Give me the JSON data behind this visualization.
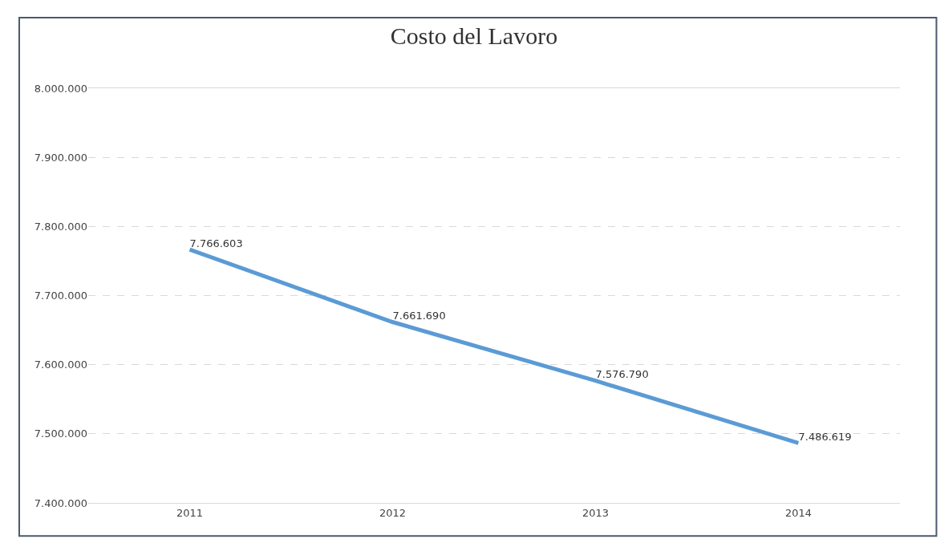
{
  "chart_data": {
    "type": "line",
    "title": "Costo del Lavoro",
    "categories": [
      "2011",
      "2012",
      "2013",
      "2014"
    ],
    "values": [
      7766603,
      7661690,
      7576790,
      7486619
    ],
    "value_labels": [
      "7.766.603",
      "7.661.690",
      "7.576.790",
      "7.486.619"
    ],
    "color": "#5b9bd5",
    "ylim": [
      7400000,
      8000000
    ],
    "yticks": [
      {
        "value": 7400000,
        "label": "7.400.000"
      },
      {
        "value": 7500000,
        "label": "7.500.000"
      },
      {
        "value": 7600000,
        "label": "7.600.000"
      },
      {
        "value": 7700000,
        "label": "7.700.000"
      },
      {
        "value": 7800000,
        "label": "7.800.000"
      },
      {
        "value": 7900000,
        "label": "7.900.000"
      },
      {
        "value": 8000000,
        "label": "8.000.000"
      }
    ],
    "grid": "y",
    "marker": "none",
    "line_style": "solid"
  }
}
